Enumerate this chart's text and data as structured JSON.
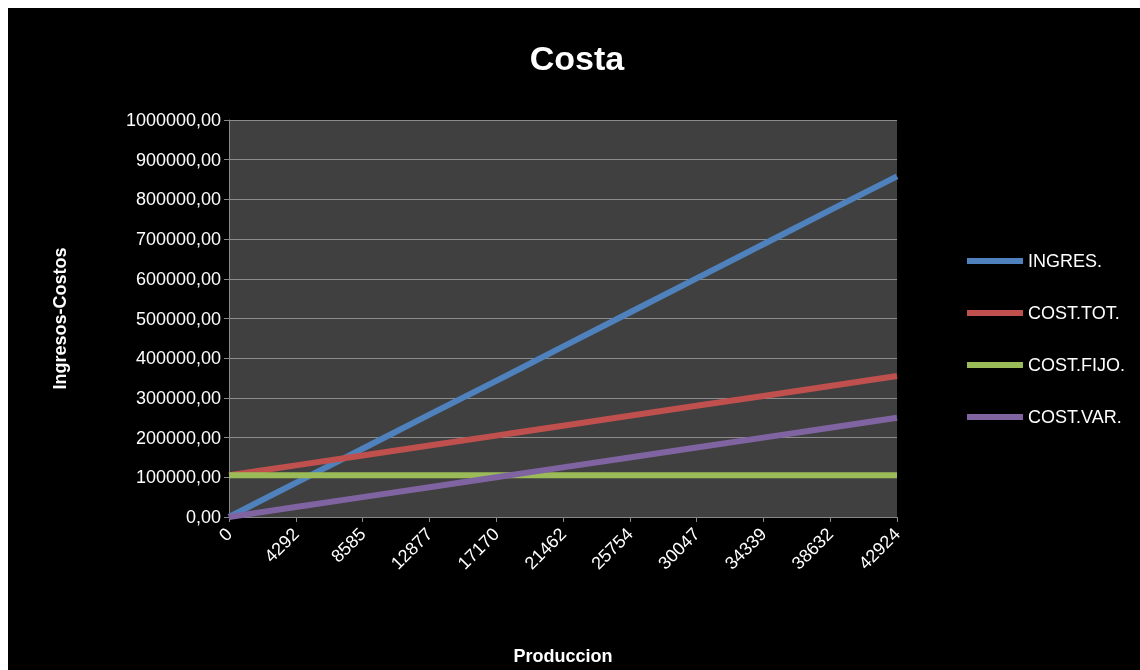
{
  "chart_data": {
    "type": "line",
    "title": "Costa",
    "xlabel": "Produccion",
    "ylabel": "Ingresos-Costos",
    "categories": [
      "0",
      "4292",
      "8585",
      "12877",
      "17170",
      "21462",
      "25754",
      "30047",
      "34339",
      "38632",
      "42924"
    ],
    "series": [
      {
        "name": "INGRES.",
        "color": "#4f81bd",
        "values": [
          0,
          86000,
          172000,
          258000,
          343000,
          429000,
          515000,
          601000,
          687000,
          773000,
          858000
        ]
      },
      {
        "name": "COST.TOT.",
        "color": "#c0504d",
        "values": [
          105000,
          130000,
          155000,
          180000,
          205000,
          230000,
          255000,
          280000,
          305000,
          330000,
          355000
        ]
      },
      {
        "name": "COST.FIJO.",
        "color": "#9bbb59",
        "values": [
          105000,
          105000,
          105000,
          105000,
          105000,
          105000,
          105000,
          105000,
          105000,
          105000,
          105000
        ]
      },
      {
        "name": "COST.VAR.",
        "color": "#8064a2",
        "values": [
          0,
          25000,
          50000,
          75000,
          100000,
          125000,
          150000,
          175000,
          200000,
          225000,
          250000
        ]
      }
    ],
    "ylim": [
      0,
      1000000
    ],
    "yticks": [
      {
        "value": 0,
        "label": "0,00"
      },
      {
        "value": 100000,
        "label": "100000,00"
      },
      {
        "value": 200000,
        "label": "200000,00"
      },
      {
        "value": 300000,
        "label": "300000,00"
      },
      {
        "value": 400000,
        "label": "400000,00"
      },
      {
        "value": 500000,
        "label": "500000,00"
      },
      {
        "value": 600000,
        "label": "600000,00"
      },
      {
        "value": 700000,
        "label": "700000,00"
      },
      {
        "value": 800000,
        "label": "800000,00"
      },
      {
        "value": 900000,
        "label": "900000,00"
      },
      {
        "value": 1000000,
        "label": "1000000,00"
      }
    ],
    "grid": "y",
    "legend": "right",
    "marker": "none",
    "line_style": "solid"
  }
}
